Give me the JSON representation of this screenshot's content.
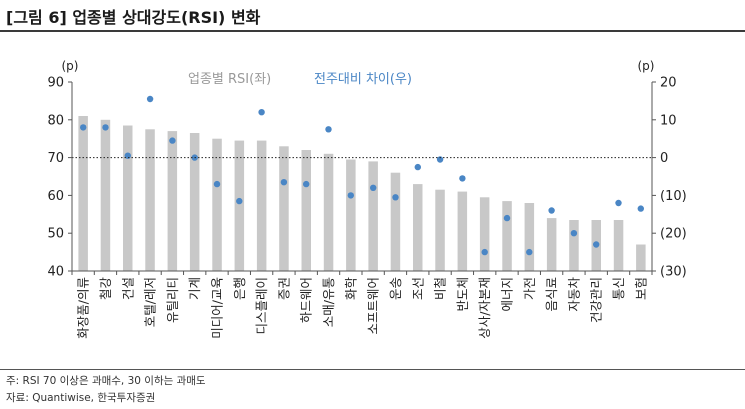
{
  "title": "[그림 6] 업종별 상대강도(RSI) 변화",
  "notes": {
    "note": "주: RSI 70 이상은 과매수, 30 이하는 과매도",
    "source": "자료: Quantiwise, 한국투자증권"
  },
  "chart_data": {
    "type": "bar",
    "left_axis_unit": "(p)",
    "right_axis_unit": "(p)",
    "left_ylim": [
      40,
      90
    ],
    "right_ylim": [
      -30,
      20
    ],
    "left_ticks": [
      "40",
      "50",
      "60",
      "70",
      "80",
      "90"
    ],
    "right_ticks": [
      "(30)",
      "(20)",
      "(10)",
      "0",
      "10",
      "20"
    ],
    "reference_line": 0,
    "legend": {
      "bar": "업종별 RSI(좌)",
      "dot": "전주대비 차이(우)",
      "placement": "top"
    },
    "colors": {
      "bar": "#c8c8c8",
      "dot": "#4a86c5",
      "reference": "#222222",
      "axis": "#555555"
    },
    "categories": [
      "화장품/의류",
      "철강",
      "건설",
      "호텔/레저",
      "유틸리티",
      "기계",
      "미디어/교육",
      "은행",
      "디스플레이",
      "증권",
      "하드웨어",
      "소매/유통",
      "화학",
      "소프트웨어",
      "운송",
      "조선",
      "비철",
      "반도체",
      "상사/자본재",
      "에너지",
      "가전",
      "음식료",
      "자동차",
      "건강관리",
      "통신",
      "보험"
    ],
    "series": [
      {
        "name": "업종별 RSI(좌)",
        "axis": "left",
        "values": [
          81,
          80,
          78.5,
          77.5,
          77,
          76.5,
          75,
          74.5,
          74.5,
          73,
          72,
          71,
          69.5,
          69,
          66,
          63,
          61.5,
          61,
          59.5,
          58.5,
          58,
          54,
          53.5,
          53.5,
          53.5,
          47
        ]
      },
      {
        "name": "전주대비 차이(우)",
        "axis": "right",
        "values": [
          8,
          8,
          0.5,
          15.5,
          4.5,
          0,
          -7,
          -11.5,
          12,
          -6.5,
          -7,
          7.5,
          -10,
          -8,
          -10.5,
          -2.5,
          -0.5,
          -5.5,
          -25,
          -16,
          -25,
          -14,
          -20,
          -23,
          -12,
          -13.5
        ]
      }
    ]
  }
}
